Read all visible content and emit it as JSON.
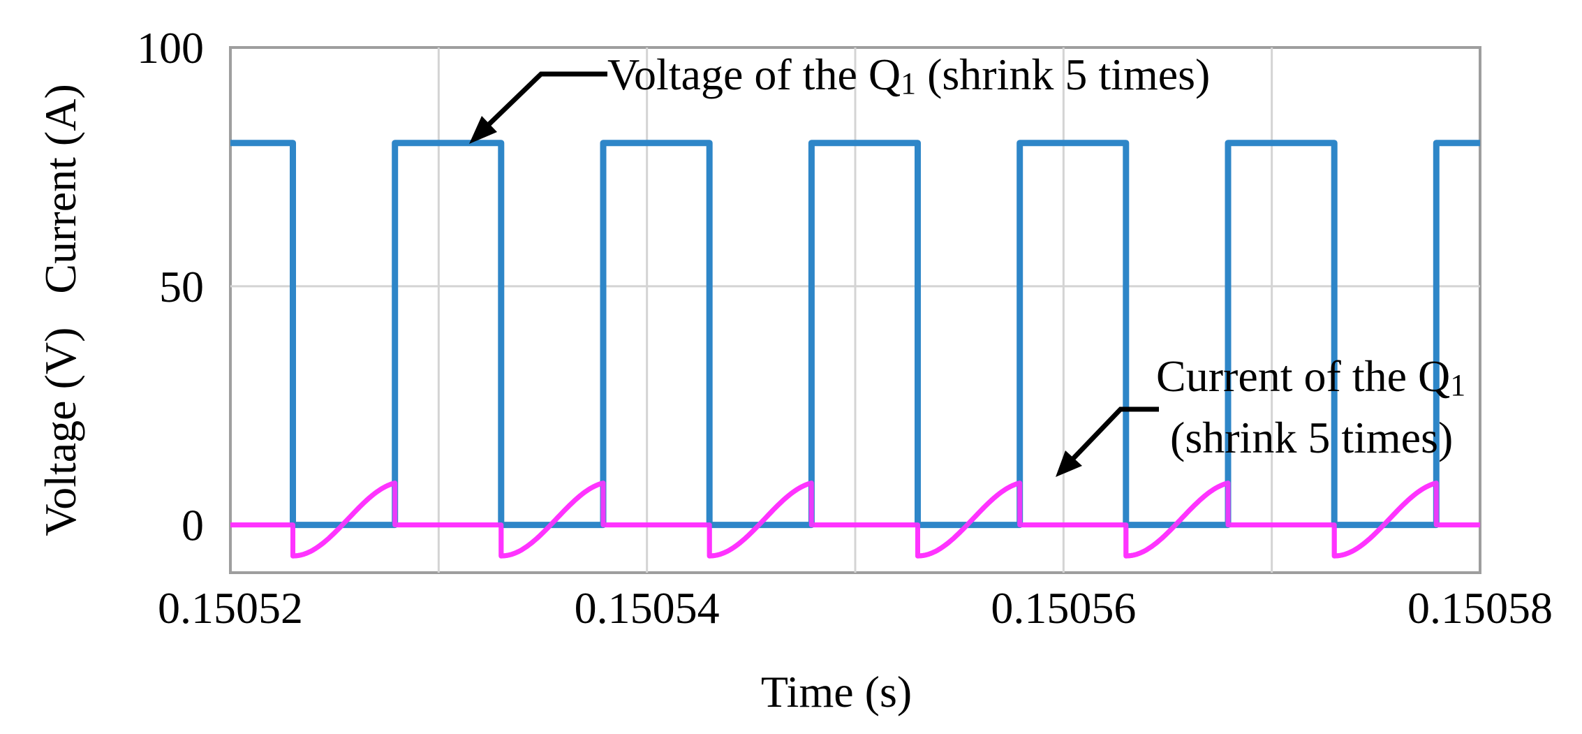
{
  "chart_data": {
    "type": "line",
    "xlabel": "Time (s)",
    "ylabel": "Voltage (V)   Current (A)",
    "xlim": [
      0.15052,
      0.15058
    ],
    "ylim": [
      -10,
      100
    ],
    "x_ticks": [
      0.15052,
      0.15054,
      0.15056,
      0.15058
    ],
    "x_tick_labels": [
      "0.15052",
      "0.15054",
      "0.15056",
      "0.15058"
    ],
    "y_ticks": [
      0,
      50,
      100
    ],
    "y_tick_labels": [
      "0",
      "50",
      "100"
    ],
    "grid": true,
    "switching": {
      "period": 1e-05,
      "first_turn_on": 0.150523,
      "first_turn_off": 0.1505279,
      "voltage_high": 80,
      "voltage_low": 0,
      "current_min": -6.5,
      "current_max": 9
    },
    "series": [
      {
        "name": "Voltage of the Q1 (shrink 5 times)",
        "color": "#2e86c8",
        "x": [
          0.15052,
          0.150523,
          0.150523,
          0.1505279,
          0.1505279,
          0.150533,
          0.150533,
          0.1505379,
          0.1505379,
          0.150543,
          0.150543,
          0.1505479,
          0.1505479,
          0.150553,
          0.150553,
          0.1505579,
          0.1505579,
          0.150563,
          0.150563,
          0.1505679,
          0.1505679,
          0.150573,
          0.150573,
          0.1505779,
          0.1505779,
          0.15058
        ],
        "y": [
          80,
          80,
          0,
          0,
          80,
          80,
          0,
          0,
          80,
          80,
          0,
          0,
          80,
          80,
          0,
          0,
          80,
          80,
          0,
          0,
          80,
          80,
          0,
          0,
          80,
          80
        ]
      },
      {
        "name": "Current of the Q1 (shrink 5 times)",
        "color": "#ff33ff",
        "x": [
          0.15052,
          0.150523
        ],
        "y": [
          0,
          0
        ]
      }
    ],
    "annotations": [
      {
        "line1": "Voltage of the Q",
        "sub": "1",
        "line1_tail": " (shrink 5 times)"
      },
      {
        "line1": "Current of the Q",
        "sub": "1",
        "line2": "(shrink 5 times)"
      }
    ]
  }
}
